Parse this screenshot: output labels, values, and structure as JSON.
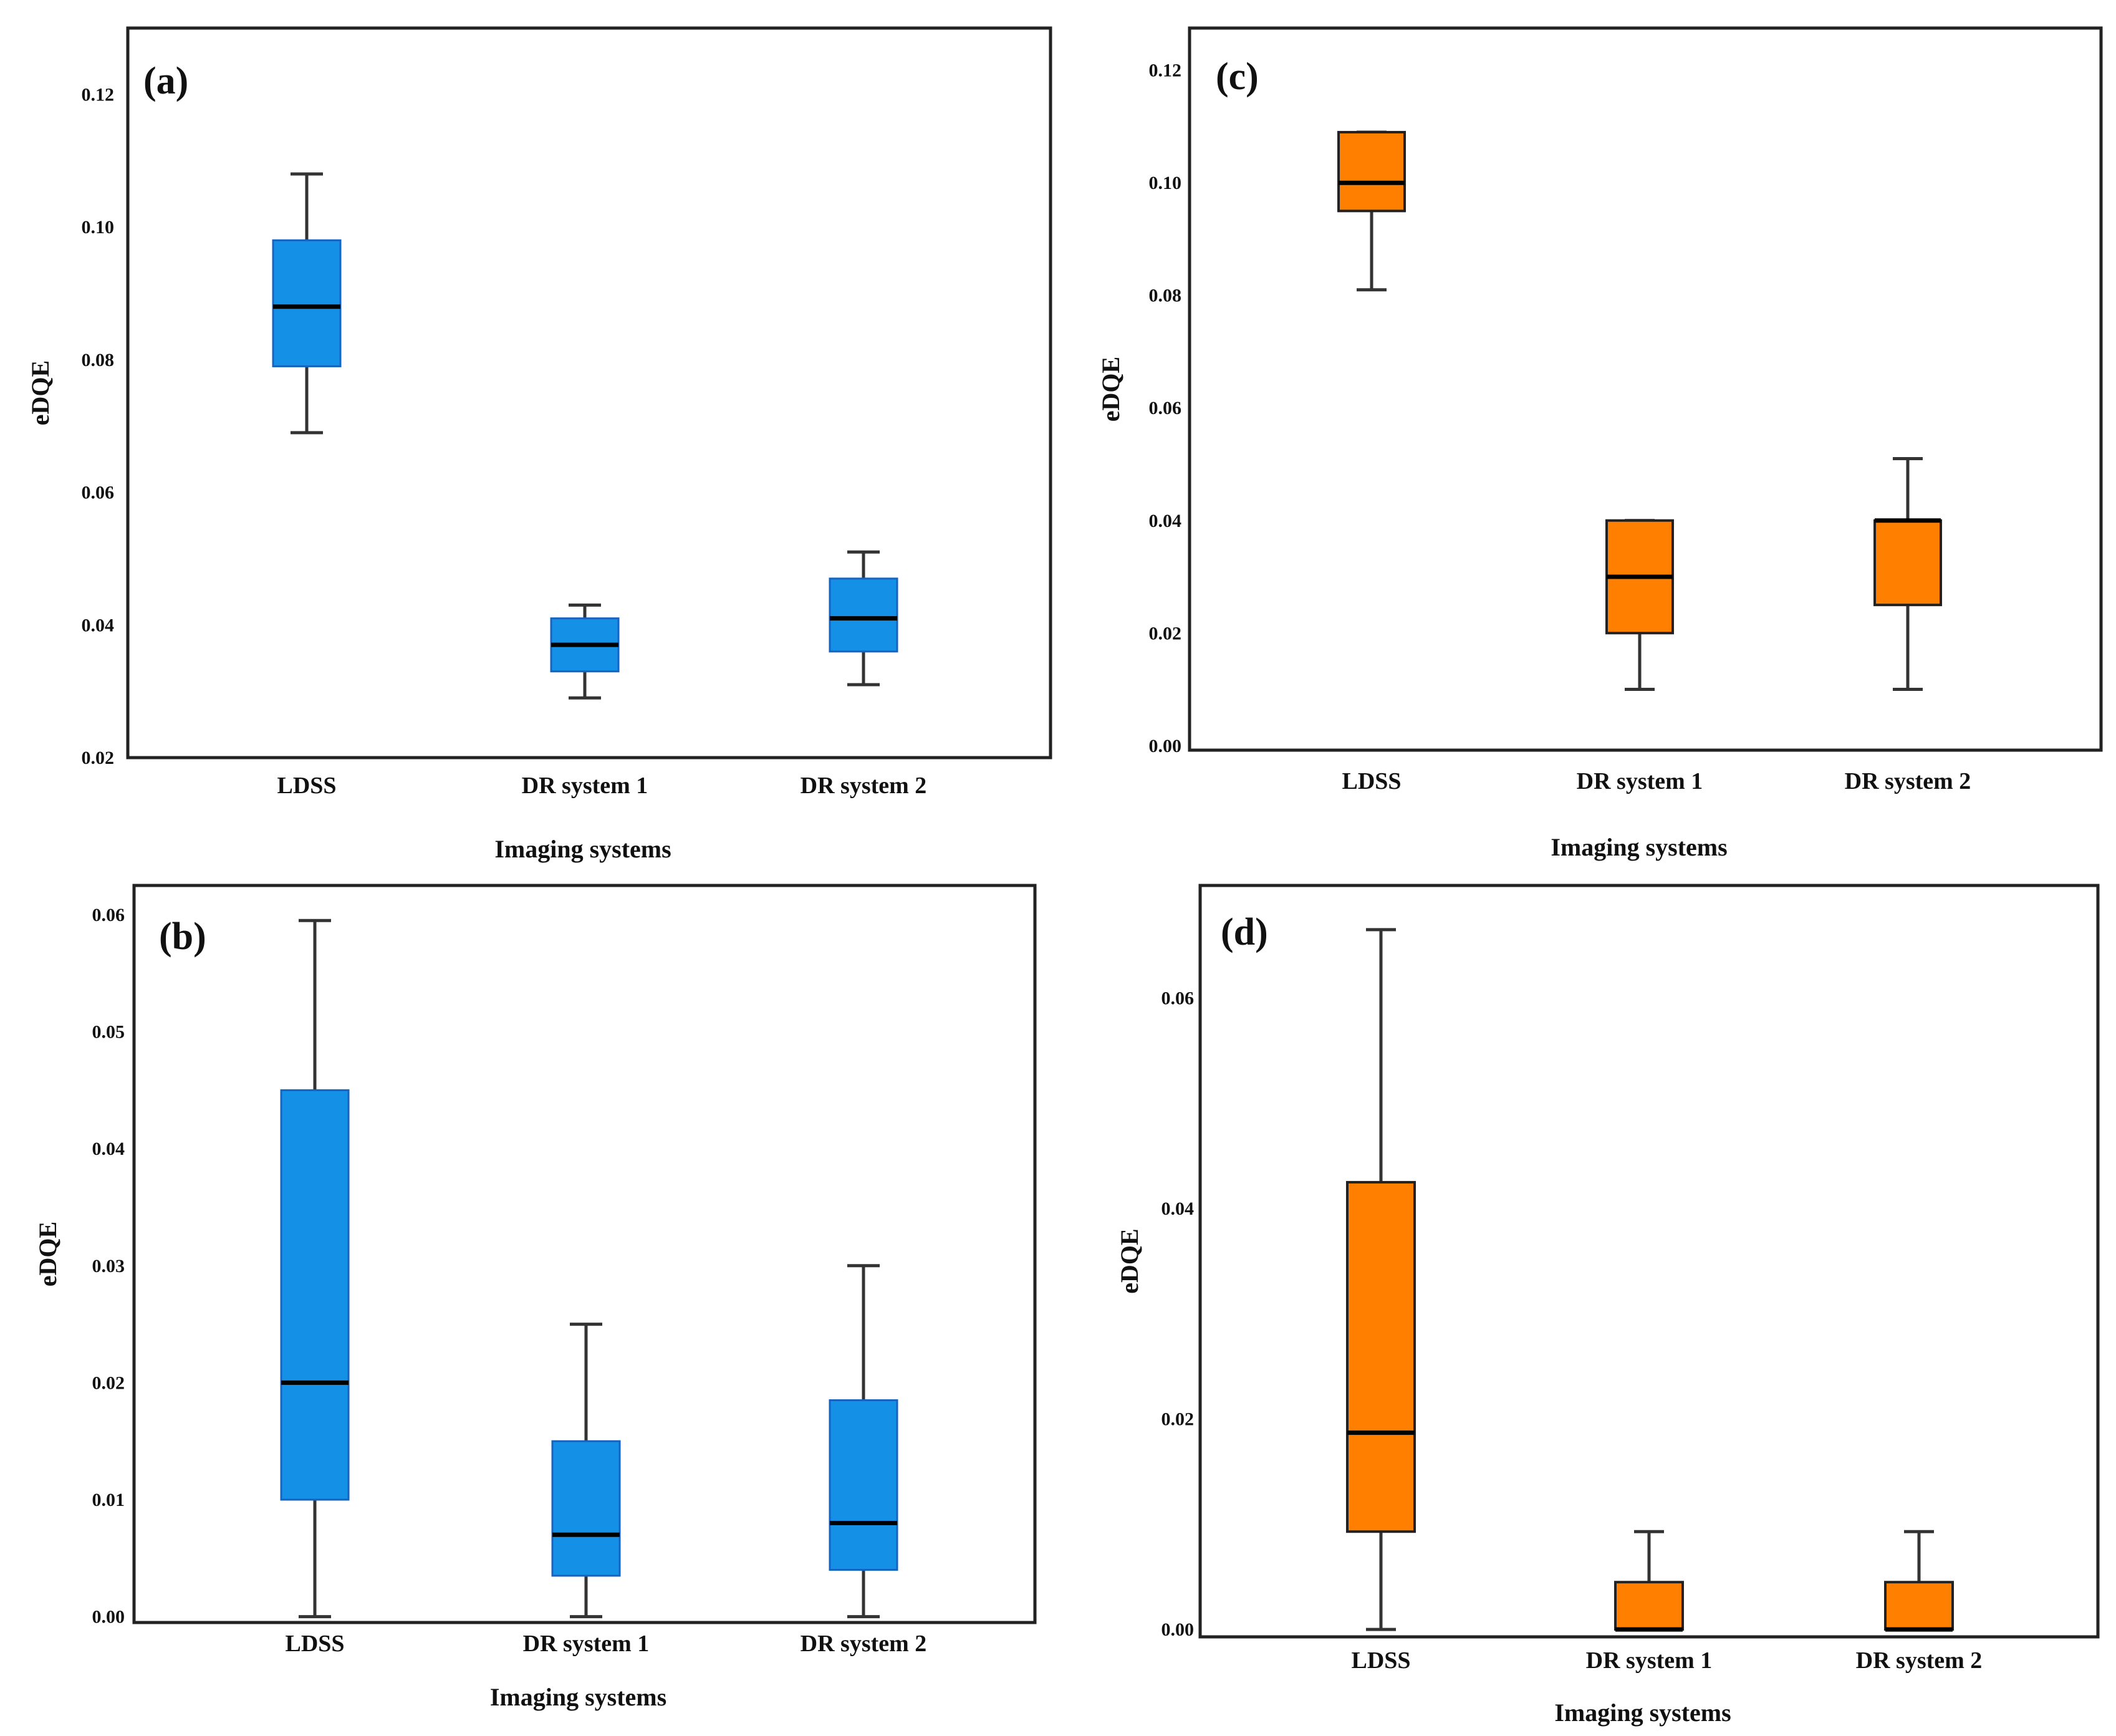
{
  "chart_data": [
    {
      "panel": "(a)",
      "type": "box",
      "color": "#1490e6",
      "xlabel": "Imaging systems",
      "ylabel": "eDQE",
      "ylim": [
        0.02,
        0.13
      ],
      "yticks": [
        "0.02",
        "0.04",
        "0.06",
        "0.08",
        "0.10",
        "0.12"
      ],
      "categories": [
        "LDSS",
        "DR system 1",
        "DR system 2"
      ],
      "boxes": [
        {
          "min": 0.069,
          "q1": 0.079,
          "median": 0.088,
          "q3": 0.098,
          "max": 0.108
        },
        {
          "min": 0.029,
          "q1": 0.033,
          "median": 0.037,
          "q3": 0.041,
          "max": 0.043
        },
        {
          "min": 0.031,
          "q1": 0.036,
          "median": 0.041,
          "q3": 0.047,
          "max": 0.051
        }
      ]
    },
    {
      "panel": "(b)",
      "type": "box",
      "color": "#1490e6",
      "xlabel": "Imaging systems",
      "ylabel": "eDQE",
      "ylim": [
        -0.0005,
        0.0625
      ],
      "yticks": [
        "0.00",
        "0.01",
        "0.02",
        "0.03",
        "0.04",
        "0.05",
        "0.06"
      ],
      "categories": [
        "LDSS",
        "DR system 1",
        "DR system 2"
      ],
      "boxes": [
        {
          "min": 0.0,
          "q1": 0.01,
          "median": 0.02,
          "q3": 0.045,
          "max": 0.0595
        },
        {
          "min": 0.0,
          "q1": 0.0035,
          "median": 0.007,
          "q3": 0.015,
          "max": 0.025
        },
        {
          "min": 0.0,
          "q1": 0.004,
          "median": 0.008,
          "q3": 0.0185,
          "max": 0.03
        }
      ]
    },
    {
      "panel": "(c)",
      "type": "box",
      "color": "#ff7f00",
      "xlabel": "Imaging systems",
      "ylabel": "eDQE",
      "ylim": [
        -0.0008,
        0.1275
      ],
      "yticks": [
        "0.00",
        "0.02",
        "0.04",
        "0.06",
        "0.08",
        "0.10",
        "0.12"
      ],
      "categories": [
        "LDSS",
        "DR system 1",
        "DR system 2"
      ],
      "boxes": [
        {
          "min": 0.081,
          "q1": 0.095,
          "median": 0.1,
          "q3": 0.109,
          "max": 0.109
        },
        {
          "min": 0.01,
          "q1": 0.02,
          "median": 0.03,
          "q3": 0.04,
          "max": 0.04
        },
        {
          "min": 0.01,
          "q1": 0.025,
          "median": 0.04,
          "q3": 0.04,
          "max": 0.051
        }
      ]
    },
    {
      "panel": "(d)",
      "type": "box",
      "color": "#ff7f00",
      "xlabel": "Imaging systems",
      "ylabel": "eDQE",
      "ylim": [
        -0.0007,
        0.0707
      ],
      "yticks": [
        "0.00",
        "0.02",
        "0.04",
        "0.06"
      ],
      "categories": [
        "LDSS",
        "DR system 1",
        "DR system 2"
      ],
      "boxes": [
        {
          "min": 0.0,
          "q1": 0.0093,
          "median": 0.0187,
          "q3": 0.0425,
          "max": 0.0665
        },
        {
          "min": 0.0,
          "q1": 0.0,
          "median": 0.0,
          "q3": 0.0045,
          "max": 0.0093
        },
        {
          "min": 0.0,
          "q1": 0.0,
          "median": 0.0,
          "q3": 0.0045,
          "max": 0.0093
        }
      ]
    }
  ]
}
